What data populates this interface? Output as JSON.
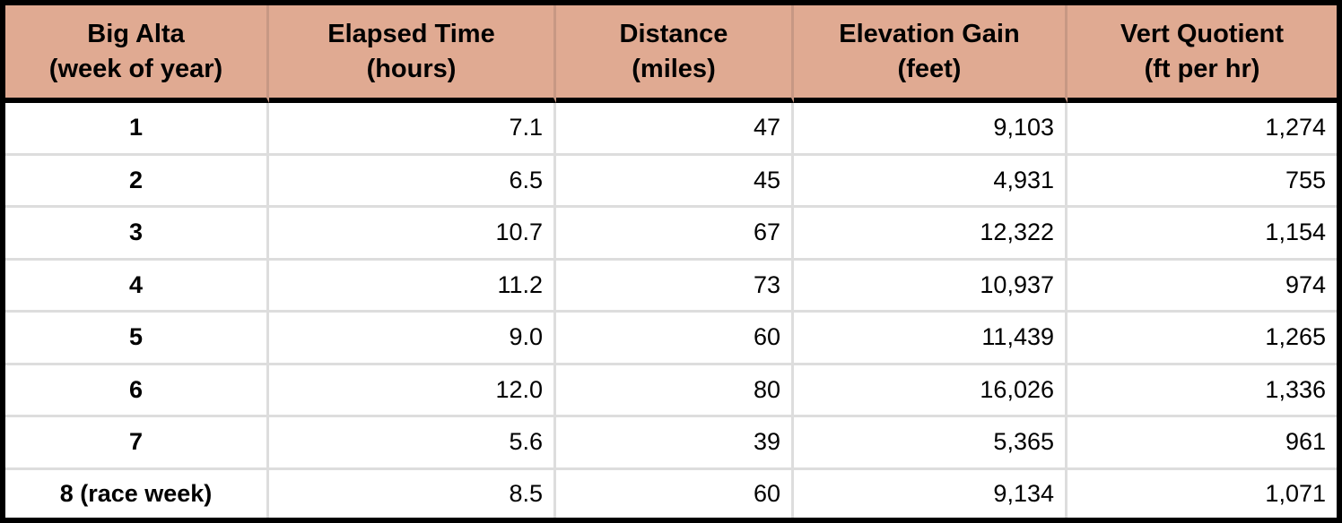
{
  "chart_data": {
    "type": "table",
    "columns": [
      {
        "key": "week",
        "line1": "Big Alta",
        "line2": "(week of year)"
      },
      {
        "key": "hours",
        "line1": "Elapsed Time",
        "line2": "(hours)"
      },
      {
        "key": "miles",
        "line1": "Distance",
        "line2": "(miles)"
      },
      {
        "key": "feet",
        "line1": "Elevation Gain",
        "line2": "(feet)"
      },
      {
        "key": "vert_quotient",
        "line1": "Vert Quotient",
        "line2": "(ft per hr)"
      }
    ],
    "rows": [
      {
        "week": "1",
        "hours": "7.1",
        "miles": "47",
        "feet": "9,103",
        "vert_quotient": "1,274"
      },
      {
        "week": "2",
        "hours": "6.5",
        "miles": "45",
        "feet": "4,931",
        "vert_quotient": "755"
      },
      {
        "week": "3",
        "hours": "10.7",
        "miles": "67",
        "feet": "12,322",
        "vert_quotient": "1,154"
      },
      {
        "week": "4",
        "hours": "11.2",
        "miles": "73",
        "feet": "10,937",
        "vert_quotient": "974"
      },
      {
        "week": "5",
        "hours": "9.0",
        "miles": "60",
        "feet": "11,439",
        "vert_quotient": "1,265"
      },
      {
        "week": "6",
        "hours": "12.0",
        "miles": "80",
        "feet": "16,026",
        "vert_quotient": "1,336"
      },
      {
        "week": "7",
        "hours": "5.6",
        "miles": "39",
        "feet": "5,365",
        "vert_quotient": "961"
      },
      {
        "week": "8 (race week)",
        "hours": "8.5",
        "miles": "60",
        "feet": "9,134",
        "vert_quotient": "1,071"
      }
    ]
  },
  "colors": {
    "header_bg": "#E0AA92",
    "header_divider": "#C79884",
    "body_divider": "#DDDDDD",
    "border": "#000000",
    "text": "#000000"
  }
}
